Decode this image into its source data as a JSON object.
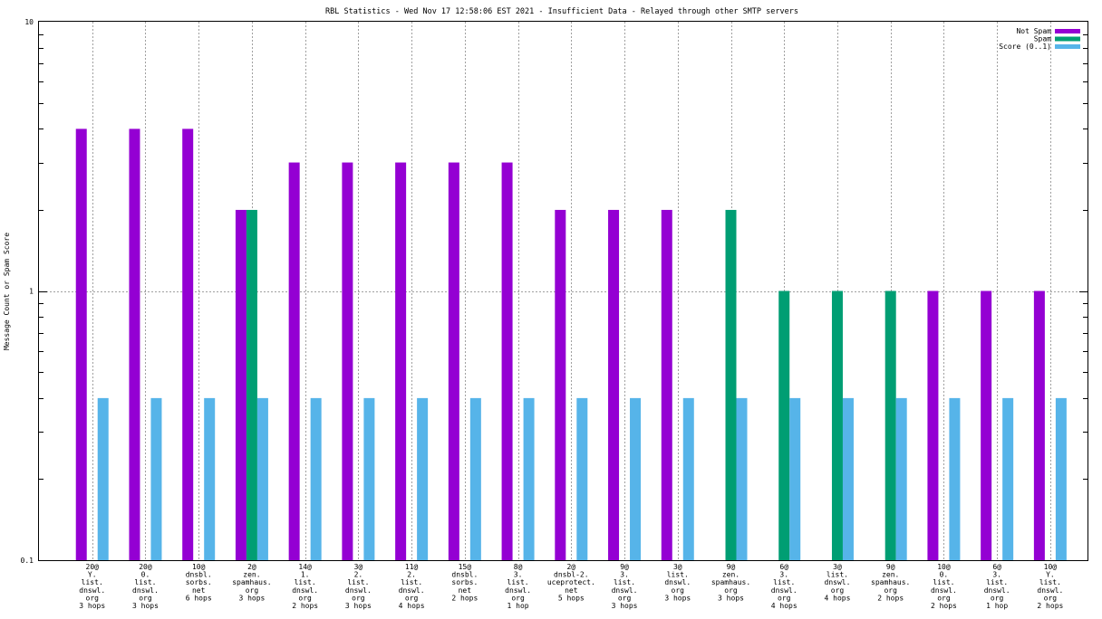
{
  "chart_data": {
    "type": "bar",
    "title": "RBL Statistics - Wed Nov 17 12:58:06 EST 2021 - Insufficient Data - Relayed through other SMTP servers",
    "xlabel": "",
    "ylabel": "Message Count or Spam Score",
    "yscale": "log",
    "ylim": [
      0.1,
      10
    ],
    "yticks": [
      "0.1",
      "1",
      "10"
    ],
    "grid": true,
    "legend_position": "top-right",
    "categories": [
      [
        "20@",
        "Y.",
        "list.",
        "dnswl.",
        "org",
        "3 hops"
      ],
      [
        "20@",
        "0.",
        "list.",
        "dnswl.",
        "org",
        "3 hops"
      ],
      [
        "10@",
        "dnsbl.",
        "sorbs.",
        "net",
        "6 hops"
      ],
      [
        "2@",
        "zen.",
        "spamhaus.",
        "org",
        "3 hops"
      ],
      [
        "14@",
        "1.",
        "list.",
        "dnswl.",
        "org",
        "2 hops"
      ],
      [
        "3@",
        "2.",
        "list.",
        "dnswl.",
        "org",
        "3 hops"
      ],
      [
        "11@",
        "2.",
        "list.",
        "dnswl.",
        "org",
        "4 hops"
      ],
      [
        "15@",
        "dnsbl.",
        "sorbs.",
        "net",
        "2 hops"
      ],
      [
        "8@",
        "3.",
        "list.",
        "dnswl.",
        "org",
        "1 hop"
      ],
      [
        "2@",
        "dnsbl-2.",
        "uceprotect.",
        "net",
        "5 hops"
      ],
      [
        "9@",
        "3.",
        "list.",
        "dnswl.",
        "org",
        "3 hops"
      ],
      [
        "3@",
        "list.",
        "dnswl.",
        "org",
        "3 hops"
      ],
      [
        "9@",
        "zen.",
        "spamhaus.",
        "org",
        "3 hops"
      ],
      [
        "6@",
        "3.",
        "list.",
        "dnswl.",
        "org",
        "4 hops"
      ],
      [
        "3@",
        "list.",
        "dnswl.",
        "org",
        "4 hops"
      ],
      [
        "9@",
        "zen.",
        "spamhaus.",
        "org",
        "2 hops"
      ],
      [
        "10@",
        "0.",
        "list.",
        "dnswl.",
        "org",
        "2 hops"
      ],
      [
        "6@",
        "3.",
        "list.",
        "dnswl.",
        "org",
        "1 hop"
      ],
      [
        "10@",
        "Y.",
        "list.",
        "dnswl.",
        "org",
        "2 hops"
      ]
    ],
    "series": [
      {
        "name": "Not Spam",
        "color": "#9400d3",
        "values": [
          4,
          4,
          4,
          2,
          3,
          3,
          3,
          3,
          3,
          2,
          2,
          2,
          null,
          null,
          null,
          null,
          1,
          1,
          1
        ]
      },
      {
        "name": "Spam",
        "color": "#009e73",
        "values": [
          null,
          null,
          null,
          2,
          null,
          null,
          null,
          null,
          null,
          null,
          null,
          null,
          2,
          1,
          1,
          1,
          null,
          null,
          null
        ]
      },
      {
        "name": "Score (0..1)",
        "color": "#56b4e9",
        "values": [
          0.4,
          0.4,
          0.4,
          0.4,
          0.4,
          0.4,
          0.4,
          0.4,
          0.4,
          0.4,
          0.4,
          0.4,
          0.4,
          0.4,
          0.4,
          0.4,
          0.4,
          0.4,
          0.4
        ]
      }
    ]
  }
}
